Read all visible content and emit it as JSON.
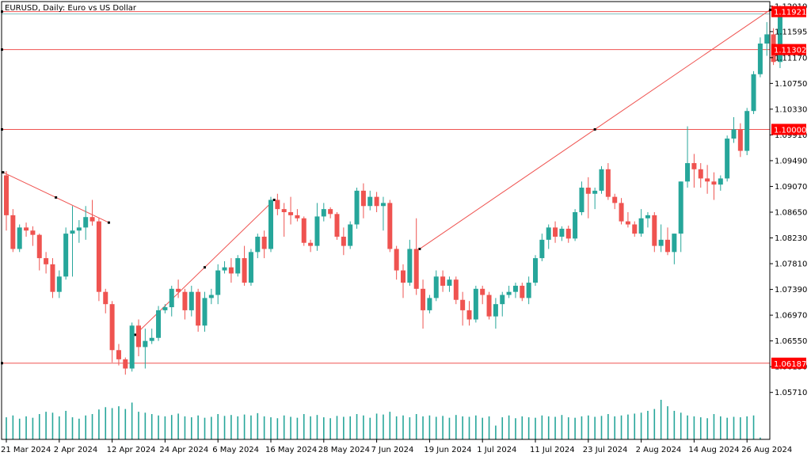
{
  "window": {
    "title": "EURUSD, Daily:  Euro vs US Dollar"
  },
  "colors": {
    "bull": "#26a69a",
    "bear": "#ef5350",
    "level": "#ef5350",
    "tag_bg": "#ff0000",
    "volume": "#26a69a",
    "frame": "#000000",
    "price_line": "#7fbfbf"
  },
  "chart_data": {
    "type": "candlestick",
    "title": "EURUSD, Daily:  Euro vs US Dollar",
    "ylim": [
      1.0528,
      1.1202
    ],
    "y_ticks": [
      "1.12010",
      "1.11595",
      "1.11170",
      "1.10750",
      "1.10330",
      "1.09910",
      "1.09490",
      "1.09070",
      "1.08650",
      "1.08230",
      "1.07810",
      "1.07390",
      "1.06970",
      "1.06550",
      "1.06130",
      "1.05710"
    ],
    "x_labels": [
      {
        "label": "21 Mar 2024",
        "index": 0
      },
      {
        "label": "2 Apr 2024",
        "index": 8
      },
      {
        "label": "12 Apr 2024",
        "index": 16
      },
      {
        "label": "24 Apr 2024",
        "index": 24
      },
      {
        "label": "6 May 2024",
        "index": 32
      },
      {
        "label": "16 May 2024",
        "index": 40
      },
      {
        "label": "28 May 2024",
        "index": 48
      },
      {
        "label": "7 Jun 2024",
        "index": 56
      },
      {
        "label": "19 Jun 2024",
        "index": 64
      },
      {
        "label": "1 Jul 2024",
        "index": 72
      },
      {
        "label": "11 Jul 2024",
        "index": 80
      },
      {
        "label": "23 Jul 2024",
        "index": 88
      },
      {
        "label": "2 Aug 2024",
        "index": 96
      },
      {
        "label": "14 Aug 2024",
        "index": 104
      },
      {
        "label": "26 Aug 2024",
        "index": 112
      }
    ],
    "candles": [
      [
        1.0925,
        1.0932,
        1.0835,
        1.086
      ],
      [
        1.086,
        1.087,
        1.08,
        1.0805
      ],
      [
        1.0805,
        1.0845,
        1.08,
        1.084
      ],
      [
        1.084,
        1.0848,
        1.0825,
        1.0835
      ],
      [
        1.0835,
        1.0842,
        1.081,
        1.0828
      ],
      [
        1.0828,
        1.083,
        1.077,
        1.079
      ],
      [
        1.079,
        1.08,
        1.0765,
        1.078
      ],
      [
        1.078,
        1.079,
        1.0725,
        1.0735
      ],
      [
        1.0735,
        1.077,
        1.0725,
        1.076
      ],
      [
        1.076,
        1.084,
        1.0755,
        1.083
      ],
      [
        1.083,
        1.0875,
        1.076,
        1.0835
      ],
      [
        1.0835,
        1.0852,
        1.0815,
        1.084
      ],
      [
        1.084,
        1.0875,
        1.082,
        1.0857
      ],
      [
        1.0857,
        1.0885,
        1.0843,
        1.085
      ],
      [
        1.085,
        1.0856,
        1.072,
        1.0735
      ],
      [
        1.0735,
        1.074,
        1.07,
        1.0715
      ],
      [
        1.0715,
        1.072,
        1.062,
        1.064
      ],
      [
        1.064,
        1.065,
        1.0615,
        1.0625
      ],
      [
        1.0625,
        1.0628,
        1.06,
        1.061
      ],
      [
        1.061,
        1.0685,
        1.0605,
        1.068
      ],
      [
        1.068,
        1.069,
        1.063,
        1.0645
      ],
      [
        1.0645,
        1.0675,
        1.061,
        1.0655
      ],
      [
        1.0655,
        1.0675,
        1.065,
        1.066
      ],
      [
        1.066,
        1.0712,
        1.0655,
        1.0705
      ],
      [
        1.0705,
        1.0715,
        1.07,
        1.071
      ],
      [
        1.071,
        1.0745,
        1.0695,
        1.074
      ],
      [
        1.074,
        1.0755,
        1.0725,
        1.0735
      ],
      [
        1.0735,
        1.074,
        1.069,
        1.0705
      ],
      [
        1.0705,
        1.0745,
        1.0695,
        1.0735
      ],
      [
        1.0735,
        1.074,
        1.067,
        1.068
      ],
      [
        1.068,
        1.0735,
        1.067,
        1.0725
      ],
      [
        1.0725,
        1.074,
        1.0715,
        1.073
      ],
      [
        1.073,
        1.078,
        1.0715,
        1.077
      ],
      [
        1.077,
        1.0785,
        1.0765,
        1.0775
      ],
      [
        1.0775,
        1.079,
        1.075,
        1.0765
      ],
      [
        1.0765,
        1.0795,
        1.076,
        1.079
      ],
      [
        1.079,
        1.081,
        1.0745,
        1.075
      ],
      [
        1.075,
        1.0805,
        1.0745,
        1.08
      ],
      [
        1.08,
        1.083,
        1.079,
        1.0825
      ],
      [
        1.0825,
        1.0835,
        1.079,
        1.0805
      ],
      [
        1.0805,
        1.089,
        1.08,
        1.0885
      ],
      [
        1.0885,
        1.0895,
        1.086,
        1.087
      ],
      [
        1.087,
        1.088,
        1.0825,
        1.0865
      ],
      [
        1.0865,
        1.089,
        1.0845,
        1.086
      ],
      [
        1.086,
        1.087,
        1.085,
        1.0855
      ],
      [
        1.0855,
        1.0858,
        1.081,
        1.0815
      ],
      [
        1.0815,
        1.082,
        1.08,
        1.081
      ],
      [
        1.081,
        1.088,
        1.0802,
        1.0858
      ],
      [
        1.0858,
        1.088,
        1.085,
        1.087
      ],
      [
        1.087,
        1.0873,
        1.0855,
        1.0862
      ],
      [
        1.0862,
        1.0865,
        1.082,
        1.0825
      ],
      [
        1.0825,
        1.084,
        1.0795,
        1.081
      ],
      [
        1.081,
        1.085,
        1.0805,
        1.0845
      ],
      [
        1.0845,
        1.0905,
        1.0838,
        1.09
      ],
      [
        1.09,
        1.0912,
        1.0855,
        1.0875
      ],
      [
        1.0875,
        1.09,
        1.0868,
        1.089
      ],
      [
        1.089,
        1.0898,
        1.0865,
        1.0875
      ],
      [
        1.0875,
        1.089,
        1.0835,
        1.088
      ],
      [
        1.088,
        1.0885,
        1.08,
        1.0805
      ],
      [
        1.0805,
        1.081,
        1.0755,
        1.077
      ],
      [
        1.077,
        1.078,
        1.0725,
        1.075
      ],
      [
        1.075,
        1.082,
        1.0745,
        1.0805
      ],
      [
        1.0805,
        1.0855,
        1.073,
        1.074
      ],
      [
        1.074,
        1.0755,
        1.0675,
        1.0705
      ],
      [
        1.0705,
        1.073,
        1.07,
        1.0725
      ],
      [
        1.0725,
        1.077,
        1.072,
        1.076
      ],
      [
        1.076,
        1.077,
        1.0735,
        1.0745
      ],
      [
        1.0745,
        1.076,
        1.0735,
        1.0755
      ],
      [
        1.0755,
        1.076,
        1.0715,
        1.0722
      ],
      [
        1.0722,
        1.0735,
        1.068,
        1.0705
      ],
      [
        1.0705,
        1.072,
        1.068,
        1.069
      ],
      [
        1.069,
        1.0745,
        1.0685,
        1.074
      ],
      [
        1.074,
        1.0745,
        1.0715,
        1.073
      ],
      [
        1.073,
        1.0735,
        1.069,
        1.0695
      ],
      [
        1.0695,
        1.0725,
        1.0675,
        1.0715
      ],
      [
        1.0715,
        1.0735,
        1.0695,
        1.073
      ],
      [
        1.073,
        1.0745,
        1.0725,
        1.0735
      ],
      [
        1.0735,
        1.075,
        1.0725,
        1.0745
      ],
      [
        1.0745,
        1.075,
        1.072,
        1.0725
      ],
      [
        1.0725,
        1.076,
        1.0715,
        1.075
      ],
      [
        1.075,
        1.0795,
        1.0745,
        1.079
      ],
      [
        1.079,
        1.083,
        1.0785,
        1.082
      ],
      [
        1.082,
        1.0845,
        1.0805,
        1.084
      ],
      [
        1.084,
        1.085,
        1.0815,
        1.0825
      ],
      [
        1.0825,
        1.0842,
        1.0818,
        1.0838
      ],
      [
        1.0838,
        1.0843,
        1.0815,
        1.0822
      ],
      [
        1.0822,
        1.087,
        1.0818,
        1.0865
      ],
      [
        1.0865,
        1.0915,
        1.086,
        1.0905
      ],
      [
        1.0905,
        1.0922,
        1.0855,
        1.0895
      ],
      [
        1.0895,
        1.0905,
        1.087,
        1.09
      ],
      [
        1.09,
        1.094,
        1.0895,
        1.0935
      ],
      [
        1.0935,
        1.0945,
        1.0885,
        1.089
      ],
      [
        1.089,
        1.0895,
        1.087,
        1.088
      ],
      [
        1.088,
        1.0888,
        1.0845,
        1.085
      ],
      [
        1.085,
        1.0865,
        1.084,
        1.0845
      ],
      [
        1.0845,
        1.085,
        1.0825,
        1.083
      ],
      [
        1.083,
        1.087,
        1.0825,
        1.0855
      ],
      [
        1.0855,
        1.0865,
        1.084,
        1.086
      ],
      [
        1.086,
        1.0865,
        1.08,
        1.081
      ],
      [
        1.081,
        1.0845,
        1.08,
        1.082
      ],
      [
        1.082,
        1.084,
        1.0795,
        1.08
      ],
      [
        1.08,
        1.083,
        1.078,
        1.083
      ],
      [
        1.083,
        1.0915,
        1.08,
        1.0915
      ],
      [
        1.0915,
        1.1005,
        1.0905,
        1.0945
      ],
      [
        1.0945,
        1.096,
        1.0905,
        1.0935
      ],
      [
        1.0935,
        1.0945,
        1.0905,
        1.092
      ],
      [
        1.092,
        1.0942,
        1.0895,
        1.0915
      ],
      [
        1.0915,
        1.093,
        1.0885,
        1.091
      ],
      [
        1.091,
        1.0925,
        1.09,
        1.092
      ],
      [
        1.092,
        1.099,
        1.0915,
        1.0985
      ],
      [
        1.0985,
        1.102,
        1.0978,
        1.1
      ],
      [
        1.1,
        1.101,
        1.0955,
        1.0965
      ],
      [
        1.0965,
        1.1035,
        1.0958,
        1.103
      ],
      [
        1.103,
        1.1095,
        1.1025,
        1.109
      ],
      [
        1.109,
        1.115,
        1.1085,
        1.114
      ],
      [
        1.114,
        1.1175,
        1.112,
        1.1155
      ],
      [
        1.1155,
        1.1165,
        1.1105,
        1.111
      ],
      [
        1.111,
        1.1202,
        1.11,
        1.1192
      ],
      [
        1.1192,
        1.1198,
        1.1184,
        1.119
      ]
    ],
    "volumes": [
      48,
      52,
      45,
      50,
      47,
      55,
      60,
      58,
      50,
      62,
      48,
      45,
      52,
      55,
      65,
      70,
      68,
      72,
      66,
      80,
      60,
      58,
      55,
      52,
      50,
      53,
      56,
      50,
      48,
      52,
      47,
      49,
      55,
      51,
      53,
      50,
      54,
      52,
      57,
      50,
      48,
      46,
      52,
      49,
      47,
      55,
      50,
      53,
      48,
      46,
      51,
      49,
      50,
      55,
      52,
      47,
      56,
      54,
      60,
      50,
      52,
      48,
      55,
      50,
      52,
      49,
      51,
      47,
      53,
      50,
      49,
      52,
      47,
      50,
      30,
      48,
      52,
      46,
      50,
      48,
      47,
      52,
      50,
      49,
      53,
      48,
      47,
      50,
      52,
      49,
      51,
      55,
      50,
      52,
      54,
      56,
      58,
      62,
      66,
      86,
      72,
      62,
      58,
      52,
      50,
      48,
      46,
      55,
      50,
      47,
      49,
      48,
      50,
      52,
      4
    ],
    "levels": [
      {
        "price": "1.11921",
        "value": 1.11921,
        "tag": true
      },
      {
        "price": "1.11302",
        "value": 1.11302,
        "tag": true
      },
      {
        "price": "1.10000",
        "value": 1.1,
        "tag": true
      },
      {
        "price": "1.06187",
        "value": 1.06187,
        "tag": true
      }
    ],
    "trendlines": [
      {
        "from": [
          -0.5,
          1.093
        ],
        "to": [
          15.5,
          1.0848
        ]
      },
      {
        "from": [
          19.5,
          1.0665
        ],
        "to": [
          40.5,
          1.0885
        ]
      },
      {
        "from": [
          62.5,
          1.0805
        ],
        "to": [
          115.5,
          1.1195
        ]
      }
    ]
  }
}
